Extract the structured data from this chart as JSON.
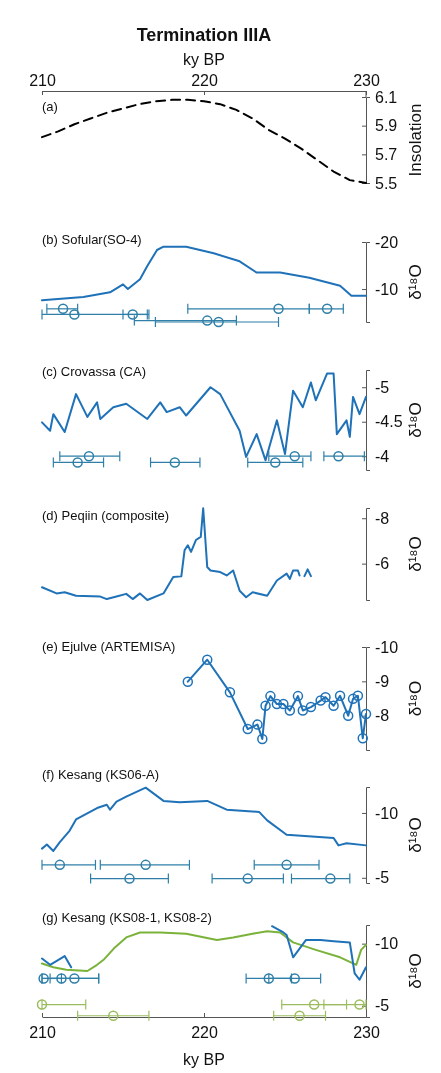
{
  "chart_data": [
    {
      "type": "line",
      "title": "Termination IIIA",
      "annotations": [
        "(a)"
      ],
      "x2label": "ky BP",
      "xlim": [
        210,
        230
      ],
      "x2lim": [
        210,
        230
      ],
      "x2ticks": [
        210,
        220,
        230
      ],
      "ylabel": "Insolation",
      "ylim": [
        5.5,
        6.1
      ],
      "yticks": [
        5.5,
        5.7,
        5.9,
        6.1
      ],
      "series": [
        {
          "color": "#000000",
          "line_style": "dashed",
          "x": [
            210,
            211,
            212,
            213,
            214,
            215,
            216,
            217,
            218,
            219,
            220,
            221,
            222,
            223,
            224,
            225,
            226,
            227,
            228,
            229,
            230
          ],
          "values": [
            5.82,
            5.86,
            5.91,
            5.95,
            5.99,
            6.02,
            6.05,
            6.07,
            6.08,
            6.08,
            6.07,
            6.05,
            6.01,
            5.95,
            5.87,
            5.81,
            5.74,
            5.66,
            5.58,
            5.52,
            5.5
          ]
        }
      ]
    },
    {
      "type": "line",
      "annotations": [
        "(b) Sofular(SO-4)"
      ],
      "xlim": [
        210,
        230
      ],
      "ylabel": "δ¹⁸O",
      "ylim": [
        -3,
        -20
      ],
      "yticks": [
        -20,
        -10
      ],
      "tick_labels": "y",
      "series": [
        {
          "color": "#1f72b8",
          "x": [
            210,
            212.55,
            214.2,
            215,
            215.3,
            216.05,
            216.5,
            217.1,
            217.5,
            218.9,
            220.6,
            222.2,
            223.25,
            224.7,
            226.5,
            228.4,
            229.1,
            230
          ],
          "values": [
            -7.6,
            -8.3,
            -9.3,
            -11,
            -10,
            -12.1,
            -14.9,
            -18.3,
            -19,
            -19,
            -17.6,
            -15.9,
            -13.5,
            -13.5,
            -12.4,
            -10.7,
            -8.6,
            -8.6
          ]
        },
        {
          "type": "scatter",
          "color": "#2f7fa8",
          "marker": "circle",
          "x": [
            211.3,
            212,
            215.6,
            220.2,
            220.9,
            224.6,
            227.6
          ],
          "values": [
            -5.8,
            -4.6,
            -4.6,
            -3.3,
            -3,
            -5.8,
            -5.8
          ],
          "xerrors": [
            [
              210.3,
              212.2
            ],
            [
              210,
              216.5
            ],
            [
              215,
              216.6
            ],
            [
              215.7,
              222
            ],
            [
              217,
              224.6
            ],
            [
              219,
              226.5
            ],
            [
              226.5,
              228.6
            ]
          ]
        }
      ]
    },
    {
      "type": "line",
      "annotations": [
        "(c) Crovassa (CA)"
      ],
      "xlim": [
        210,
        230
      ],
      "ylabel": "δ¹⁸O",
      "ylim": [
        -3.8,
        -5.25
      ],
      "yticks": [
        -5,
        -4.5,
        -4
      ],
      "tick_labels": "y",
      "series": [
        {
          "color": "#1f72b8",
          "x": [
            210,
            210.5,
            210.7,
            211.4,
            212.1,
            212.8,
            213.4,
            213.6,
            214.4,
            215.2,
            216.5,
            217.3,
            217.7,
            218.5,
            218.9,
            220.4,
            221,
            222.2,
            222.6,
            223.25,
            223.8,
            224.5,
            225,
            225.5,
            226.1,
            226.6,
            226.9,
            227.6,
            228,
            228.2,
            228.8,
            229,
            229.2,
            229.6,
            230
          ],
          "values": [
            -4.49,
            -4.37,
            -4.61,
            -4.35,
            -4.9,
            -4.57,
            -4.78,
            -4.54,
            -4.71,
            -4.76,
            -4.54,
            -4.78,
            -4.64,
            -4.71,
            -4.59,
            -5,
            -4.9,
            -4.37,
            -3.99,
            -4.32,
            -3.94,
            -4.52,
            -4.03,
            -4.95,
            -4.71,
            -5.07,
            -4.81,
            -5.2,
            -5.2,
            -4.32,
            -4.52,
            -4.28,
            -4.86,
            -4.61,
            -4.86
          ]
        },
        {
          "type": "scatter",
          "color": "#2f7fa8",
          "marker": "circle",
          "x": [
            212.9,
            212.2,
            218.2,
            224.4,
            225.6,
            228.3
          ],
          "values": [
            -4,
            -3.91,
            -3.91,
            -3.91,
            -4,
            -4
          ],
          "xerrors": [
            [
              211.1,
              214.8
            ],
            [
              210.7,
              213.8
            ],
            [
              216.7,
              219.75
            ],
            [
              222.7,
              226.1
            ],
            [
              224,
              226.6
            ],
            [
              227.4,
              229.9
            ]
          ]
        }
      ]
    },
    {
      "type": "line",
      "annotations": [
        "(d) Peqiin (composite)"
      ],
      "xlim": [
        210,
        230
      ],
      "ylabel": "δ¹⁸O",
      "ylim": [
        -4.4,
        -8.45
      ],
      "yticks": [
        -8,
        -6
      ],
      "tick_labels": "y",
      "series": [
        {
          "color": "#1f72b8",
          "x": [
            210,
            210.9,
            211.4,
            212.1,
            213.6,
            214,
            214.6,
            215.2,
            215.6,
            216.05,
            216.5,
            217.5,
            218.1,
            218.6,
            218.8,
            219,
            219.2,
            219.5,
            219.8,
            219.95,
            220.2,
            220.4,
            221,
            221.4,
            221.8,
            222,
            222.2,
            222.6,
            223,
            223.9,
            224.5,
            225.1,
            225.3,
            225.5,
            225.8,
            225.9,
            226.1,
            226.2,
            226.4,
            226.6
          ],
          "values": [
            -4.96,
            -4.69,
            -4.74,
            -4.59,
            -4.55,
            -4.44,
            -4.55,
            -4.67,
            -4.44,
            -4.69,
            -4.4,
            -4.69,
            -5.41,
            -5.44,
            -6.59,
            -6.81,
            -6.52,
            -7.04,
            -7.18,
            -8.44,
            -5.85,
            -5.7,
            -5.63,
            -5.48,
            -5.7,
            -5.26,
            -4.81,
            -4.52,
            -4.74,
            -4.59,
            -5.26,
            -5.56,
            -5.33,
            -5.7,
            -5.7,
            -5.48,
            null,
            -5.45,
            -5.75,
            -5.45
          ]
        }
      ]
    },
    {
      "type": "line",
      "annotations": [
        "(e) Ejulve (ARTEMISA)"
      ],
      "xlim": [
        210,
        230
      ],
      "ylabel": "δ¹⁸O",
      "ylim": [
        -7,
        -10
      ],
      "yticks": [
        -10,
        -9,
        -8
      ],
      "tick_labels": "y",
      "marker": "circle",
      "series": [
        {
          "color": "#1f72b8",
          "x": [
            219,
            220.2,
            221.6,
            222.7,
            223.3,
            223.6,
            223.8,
            224.1,
            224.5,
            224.9,
            225.3,
            225.8,
            226.1,
            226.6,
            227.2,
            227.5,
            228,
            228.4,
            228.9,
            229.2,
            229.5,
            229.8,
            230
          ],
          "values": [
            -8.99,
            -9.63,
            -8.68,
            -7.61,
            -7.74,
            -7.32,
            -8.29,
            -8.57,
            -8.34,
            -8.34,
            -8.15,
            -8.57,
            -8.15,
            -8.25,
            -8.44,
            -8.54,
            -8.29,
            -8.58,
            -8,
            -8.49,
            -8.58,
            -7.34,
            -8.05
          ]
        }
      ]
    },
    {
      "type": "line",
      "annotations": [
        "(f) Kesang (KS06-A)"
      ],
      "xlim": [
        210,
        230
      ],
      "ylabel": "δ¹⁸O",
      "ylim": [
        -4.6,
        -12
      ],
      "yticks": [
        -10,
        -5
      ],
      "tick_labels": "y",
      "series": [
        {
          "color": "#1f72b8",
          "x": [
            210,
            210.3,
            210.7,
            211.1,
            211.7,
            212.1,
            213.4,
            214,
            214.2,
            214.6,
            215.2,
            216.4,
            217.5,
            218.5,
            220.2,
            221.4,
            223.4,
            223.9,
            225.1,
            228,
            228.3,
            228.8,
            230
          ],
          "values": [
            -7.25,
            -7.57,
            -7.07,
            -7.75,
            -8.62,
            -9.5,
            -10.38,
            -10.63,
            -10.25,
            -10.88,
            -11.26,
            -11.95,
            -10.93,
            -10.83,
            -10.93,
            -10.25,
            -10.08,
            -9.43,
            -8.32,
            -8.07,
            -7.5,
            -7.67,
            -7.5
          ]
        },
        {
          "type": "scatter",
          "color": "#2f7fa8",
          "marker": "circle",
          "x": [
            211.1,
            216.4,
            225.1,
            215.4,
            222.7,
            227.8
          ],
          "values": [
            -6,
            -6,
            -6,
            -4.94,
            -4.94,
            -4.94
          ],
          "xerrors": [
            [
              210,
              213.3
            ],
            [
              213.6,
              219.1
            ],
            [
              223.1,
              227.1
            ],
            [
              213,
              217.8
            ],
            [
              220.5,
              224.9
            ],
            [
              225.4,
              229
            ]
          ]
        }
      ]
    },
    {
      "type": "line",
      "annotations": [
        "(g) Kesang (KS08-1, KS08-2)"
      ],
      "xlim": [
        210,
        230
      ],
      "xticks": [
        210,
        220,
        230
      ],
      "xlabel": "ky BP",
      "ylabel": "δ¹⁸O",
      "ylim": [
        -4.1,
        -11.5
      ],
      "yticks": [
        -10,
        -5
      ],
      "series": [
        {
          "color": "#7ab23a",
          "x": [
            210,
            210.7,
            211.5,
            212.8,
            213.4,
            213.8,
            214.5,
            215.2,
            216.05,
            217.3,
            218.9,
            220.8,
            221.8,
            223,
            223.9,
            224.7,
            225.5,
            226.9,
            228.4,
            229.4,
            229.7,
            230
          ],
          "values": [
            -8.4,
            -8.1,
            -7.9,
            -7.8,
            -8.3,
            -8.7,
            -9.7,
            -10.5,
            -10.9,
            -10.9,
            -10.8,
            -10.3,
            -10.5,
            -10.8,
            -11,
            -10.9,
            -10.1,
            -9.5,
            -8.9,
            -8.3,
            -9.5,
            -9.9
          ]
        },
        {
          "color": "#1f72b8",
          "x": [
            210,
            210.5,
            211.4,
            211.8,
            212,
            224.2,
            224.9,
            225.1,
            225.5,
            226.3,
            227.2,
            228,
            229,
            229.3,
            229.6,
            230
          ],
          "values": [
            -8.8,
            -8.3,
            -9,
            -8.1,
            null,
            -11.4,
            -10.9,
            -10.7,
            -8.9,
            -10.3,
            -10.3,
            -10.2,
            -10.1,
            -7.6,
            -7.1,
            -8.1
          ]
        },
        {
          "type": "scatter",
          "color": "#2f7fa8",
          "marker": "circle",
          "x": [
            210.1,
            211.2,
            212,
            224,
            225.6
          ],
          "values": [
            -7.2,
            -7.2,
            -7.2,
            -7.2,
            -7.2
          ],
          "xerrors": [
            [
              210,
              211.2
            ],
            [
              210,
              213.5
            ],
            [
              210.5,
              213.5
            ],
            [
              222.6,
              225.4
            ],
            [
              224,
              227.2
            ]
          ]
        },
        {
          "type": "scatter",
          "color": "#9bbd5f",
          "marker": "circle",
          "x": [
            210,
            226.8,
            229.6,
            214.4,
            225.9
          ],
          "values": [
            -5.1,
            -5.1,
            -5.1,
            -4.2,
            -4.2
          ],
          "xerrors": [
            [
              210,
              212.7
            ],
            [
              224.8,
              228.8
            ],
            [
              227.4,
              230
            ],
            [
              212.2,
              216.6
            ],
            [
              224.3,
              227.5
            ]
          ]
        }
      ]
    }
  ]
}
